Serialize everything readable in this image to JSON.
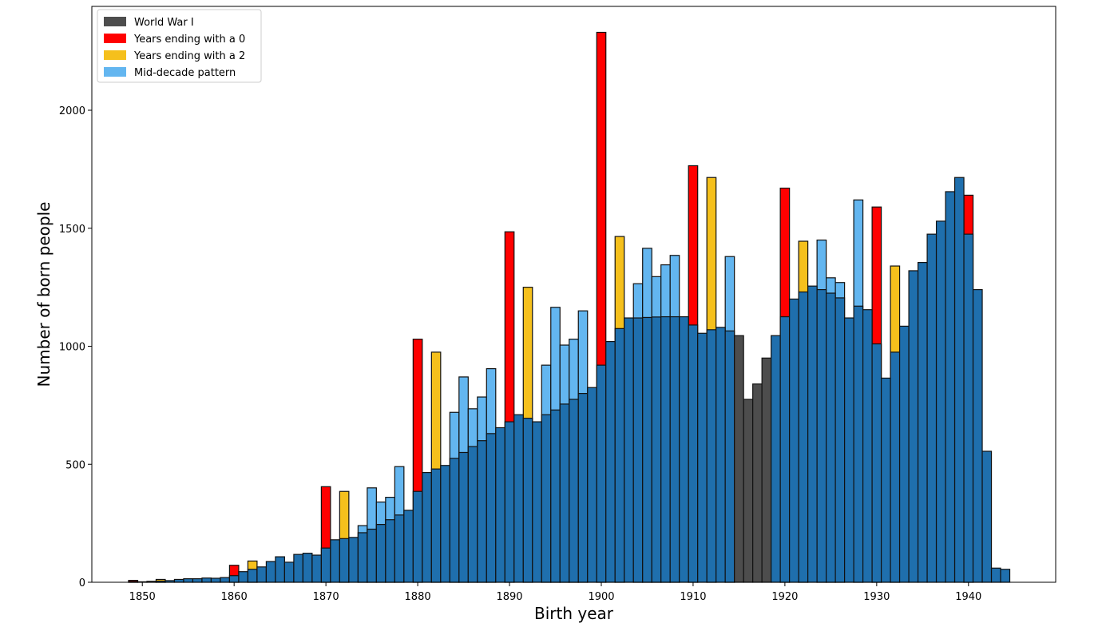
{
  "chart_data": {
    "type": "bar",
    "title": "",
    "xlabel": "Birth year",
    "ylabel": "Number of born people",
    "xlim": [
      1844.5,
      1949.5
    ],
    "ylim": [
      0,
      2440
    ],
    "x_ticks": [
      1850,
      1860,
      1870,
      1880,
      1890,
      1900,
      1910,
      1920,
      1930,
      1940
    ],
    "y_ticks": [
      0,
      500,
      1000,
      1500,
      2000
    ],
    "grid": false,
    "legend_position": "top-left",
    "colors": {
      "base": "#1f6fad",
      "world_war": "#4d4d4d",
      "ending_0": "#ff0000",
      "ending_2": "#f5c01c",
      "mid_decade": "#63b6f0",
      "edge": "#111111"
    },
    "legend": [
      {
        "label": "World War I",
        "key": "world_war"
      },
      {
        "label": "Years ending with a 0",
        "key": "ending_0"
      },
      {
        "label": "Years ending with a 2",
        "key": "ending_2"
      },
      {
        "label": "Mid-decade pattern",
        "key": "mid_decade"
      }
    ],
    "years": [
      1849,
      1850,
      1851,
      1852,
      1853,
      1854,
      1855,
      1856,
      1857,
      1858,
      1859,
      1860,
      1861,
      1862,
      1863,
      1864,
      1865,
      1866,
      1867,
      1868,
      1869,
      1870,
      1871,
      1872,
      1873,
      1874,
      1875,
      1876,
      1877,
      1878,
      1879,
      1880,
      1881,
      1882,
      1883,
      1884,
      1885,
      1886,
      1887,
      1888,
      1889,
      1890,
      1891,
      1892,
      1893,
      1894,
      1895,
      1896,
      1897,
      1898,
      1899,
      1900,
      1901,
      1902,
      1903,
      1904,
      1905,
      1906,
      1907,
      1908,
      1909,
      1910,
      1911,
      1912,
      1913,
      1914,
      1915,
      1916,
      1917,
      1918,
      1919,
      1920,
      1921,
      1922,
      1923,
      1924,
      1925,
      1926,
      1927,
      1928,
      1929,
      1930,
      1931,
      1932,
      1933,
      1934,
      1935,
      1936,
      1937,
      1938,
      1939,
      1940,
      1941,
      1942,
      1943,
      1944
    ],
    "base_values": [
      3,
      2,
      4,
      5,
      7,
      12,
      15,
      15,
      18,
      17,
      20,
      28,
      45,
      55,
      65,
      88,
      108,
      85,
      118,
      123,
      115,
      145,
      180,
      185,
      190,
      210,
      225,
      245,
      265,
      285,
      305,
      385,
      465,
      480,
      495,
      525,
      550,
      575,
      600,
      630,
      655,
      680,
      710,
      695,
      680,
      710,
      730,
      755,
      775,
      800,
      825,
      920,
      1020,
      1075,
      1120,
      1120,
      1122,
      1124,
      1125,
      1125,
      1125,
      1090,
      1055,
      1070,
      1080,
      1065,
      1045,
      775,
      840,
      950,
      1045,
      1125,
      1200,
      1230,
      1255,
      1240,
      1225,
      1205,
      1120,
      1170,
      1155,
      1010,
      865,
      975,
      1085,
      1320,
      1355,
      1475,
      1530,
      1655,
      1715,
      1475,
      1240,
      555,
      60,
      55
    ],
    "overlays": [
      {
        "year": 1849,
        "value": 8,
        "category": "ending_0"
      },
      {
        "year": 1852,
        "value": 12,
        "category": "ending_2"
      },
      {
        "year": 1860,
        "value": 72,
        "category": "ending_0"
      },
      {
        "year": 1862,
        "value": 90,
        "category": "ending_2"
      },
      {
        "year": 1870,
        "value": 405,
        "category": "ending_0"
      },
      {
        "year": 1872,
        "value": 385,
        "category": "ending_2"
      },
      {
        "year": 1874,
        "value": 240,
        "category": "mid_decade"
      },
      {
        "year": 1875,
        "value": 400,
        "category": "mid_decade"
      },
      {
        "year": 1876,
        "value": 340,
        "category": "mid_decade"
      },
      {
        "year": 1877,
        "value": 360,
        "category": "mid_decade"
      },
      {
        "year": 1878,
        "value": 490,
        "category": "mid_decade"
      },
      {
        "year": 1880,
        "value": 1030,
        "category": "ending_0"
      },
      {
        "year": 1882,
        "value": 975,
        "category": "ending_2"
      },
      {
        "year": 1884,
        "value": 720,
        "category": "mid_decade"
      },
      {
        "year": 1885,
        "value": 870,
        "category": "mid_decade"
      },
      {
        "year": 1886,
        "value": 735,
        "category": "mid_decade"
      },
      {
        "year": 1887,
        "value": 785,
        "category": "mid_decade"
      },
      {
        "year": 1888,
        "value": 905,
        "category": "mid_decade"
      },
      {
        "year": 1890,
        "value": 1485,
        "category": "ending_0"
      },
      {
        "year": 1892,
        "value": 1250,
        "category": "ending_2"
      },
      {
        "year": 1894,
        "value": 920,
        "category": "mid_decade"
      },
      {
        "year": 1895,
        "value": 1165,
        "category": "mid_decade"
      },
      {
        "year": 1896,
        "value": 1005,
        "category": "mid_decade"
      },
      {
        "year": 1897,
        "value": 1030,
        "category": "mid_decade"
      },
      {
        "year": 1898,
        "value": 1150,
        "category": "mid_decade"
      },
      {
        "year": 1900,
        "value": 2330,
        "category": "ending_0"
      },
      {
        "year": 1902,
        "value": 1465,
        "category": "ending_2"
      },
      {
        "year": 1904,
        "value": 1265,
        "category": "mid_decade"
      },
      {
        "year": 1905,
        "value": 1415,
        "category": "mid_decade"
      },
      {
        "year": 1906,
        "value": 1295,
        "category": "mid_decade"
      },
      {
        "year": 1907,
        "value": 1345,
        "category": "mid_decade"
      },
      {
        "year": 1908,
        "value": 1385,
        "category": "mid_decade"
      },
      {
        "year": 1910,
        "value": 1765,
        "category": "ending_0"
      },
      {
        "year": 1912,
        "value": 1715,
        "category": "ending_2"
      },
      {
        "year": 1914,
        "value": 1380,
        "category": "mid_decade"
      },
      {
        "year": 1920,
        "value": 1670,
        "category": "ending_0"
      },
      {
        "year": 1922,
        "value": 1445,
        "category": "ending_2"
      },
      {
        "year": 1924,
        "value": 1450,
        "category": "mid_decade"
      },
      {
        "year": 1925,
        "value": 1290,
        "category": "mid_decade"
      },
      {
        "year": 1926,
        "value": 1270,
        "category": "mid_decade"
      },
      {
        "year": 1928,
        "value": 1620,
        "category": "mid_decade"
      },
      {
        "year": 1930,
        "value": 1590,
        "category": "ending_0"
      },
      {
        "year": 1932,
        "value": 1340,
        "category": "ending_2"
      },
      {
        "year": 1940,
        "value": 1640,
        "category": "ending_0"
      }
    ],
    "world_war_years": [
      1915,
      1916,
      1917,
      1918
    ]
  }
}
